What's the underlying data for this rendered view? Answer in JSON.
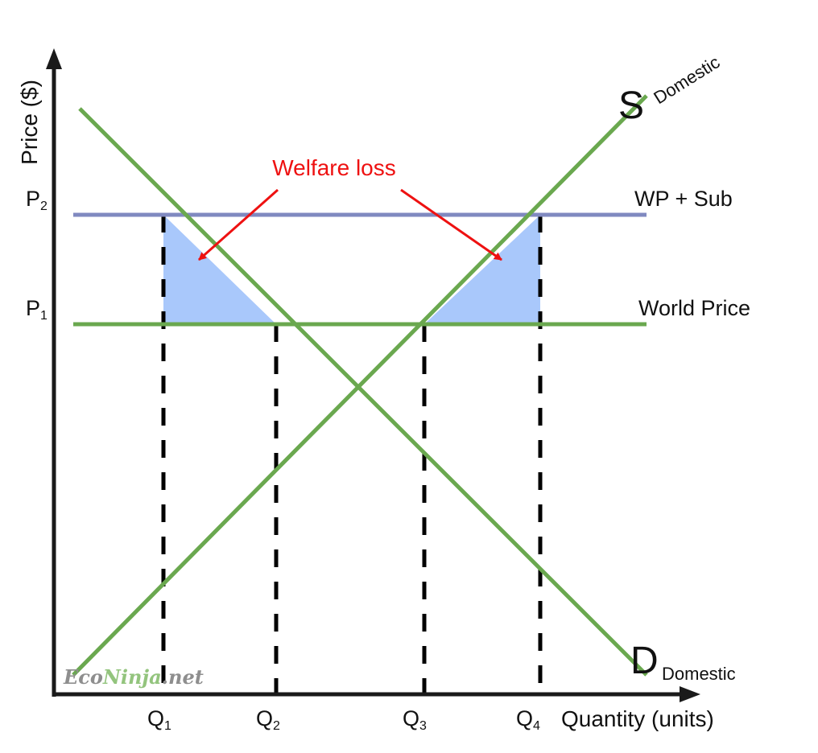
{
  "chart_data": {
    "type": "line",
    "title": "",
    "xlabel": "Quantity (units)",
    "ylabel": "Price ($)",
    "xlim": [
      0,
      100
    ],
    "ylim": [
      0,
      100
    ],
    "grid": false,
    "series": [
      {
        "name": "S",
        "subscript": "Domestic",
        "color": "#6aa84f",
        "points": [
          [
            3,
            3
          ],
          [
            92,
            93
          ]
        ]
      },
      {
        "name": "D",
        "subscript": "Domestic",
        "color": "#6aa84f",
        "points": [
          [
            4,
            91
          ],
          [
            92,
            3
          ]
        ]
      },
      {
        "name": "World Price",
        "color": "#6aa84f",
        "points": [
          [
            3,
            57.5
          ],
          [
            92,
            57.5
          ]
        ]
      },
      {
        "name": "WP + Sub",
        "color": "#8089c0",
        "points": [
          [
            3,
            74.5
          ],
          [
            92,
            74.5
          ]
        ]
      }
    ],
    "price_levels": [
      {
        "label": "P",
        "sub": "2",
        "value": 74.5
      },
      {
        "label": "P",
        "sub": "1",
        "value": 57.5
      }
    ],
    "quantity_levels": [
      {
        "label": "Q",
        "sub": "1",
        "value": 17
      },
      {
        "label": "Q",
        "sub": "2",
        "value": 34.5
      },
      {
        "label": "Q",
        "sub": "3",
        "value": 57.5
      },
      {
        "label": "Q",
        "sub": "4",
        "value": 75.5
      }
    ],
    "shaded_areas": [
      {
        "name": "welfare-loss-consumption",
        "color": "#a9c8fb",
        "points": [
          [
            17,
            74.5
          ],
          [
            17,
            57.5
          ],
          [
            34.5,
            57.5
          ]
        ]
      },
      {
        "name": "welfare-loss-production",
        "color": "#a9c8fb",
        "points": [
          [
            57.5,
            57.5
          ],
          [
            75.5,
            74.5
          ],
          [
            75.5,
            57.5
          ]
        ]
      }
    ],
    "annotations": [
      {
        "text": "Welfare loss",
        "color": "#ee1111",
        "at": [
          49,
          79
        ],
        "arrows_to": [
          [
            22.5,
            67.5
          ],
          [
            69.5,
            67.5
          ]
        ]
      }
    ],
    "watermark": {
      "part1": "Eco",
      "part2": "Ninja",
      "part3": ".net"
    }
  }
}
